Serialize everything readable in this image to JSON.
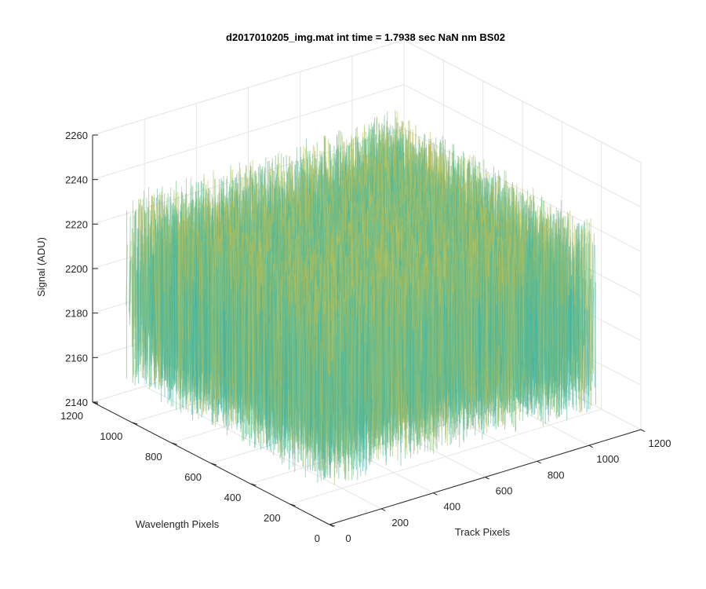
{
  "chart_data": {
    "type": "surface",
    "title": "d2017010205_img.mat int time = 1.7938 sec  NaN nm BS02",
    "xlabel": "Track Pixels",
    "ylabel": "Wavelength Pixels",
    "zlabel": "Signal (ADU)",
    "x_ticks": [
      "0",
      "200",
      "400",
      "600",
      "800",
      "1000",
      "1200"
    ],
    "y_ticks": [
      "0",
      "200",
      "400",
      "600",
      "800",
      "1000",
      "1200"
    ],
    "z_ticks": [
      "2140",
      "2160",
      "2180",
      "2200",
      "2220",
      "2240",
      "2260"
    ],
    "xlim": [
      0,
      1200
    ],
    "ylim": [
      0,
      1200
    ],
    "zlim": [
      2140,
      2260
    ],
    "grid": true,
    "colormap": "parula",
    "surface": {
      "x_range": [
        0,
        1024
      ],
      "y_range": [
        0,
        1024
      ],
      "mean_signal": 2200,
      "signal_range": [
        2150,
        2250
      ]
    },
    "colors": {
      "low": "#1a8fd4",
      "mid": "#3cb8a8",
      "high": "#e8c23a"
    }
  }
}
